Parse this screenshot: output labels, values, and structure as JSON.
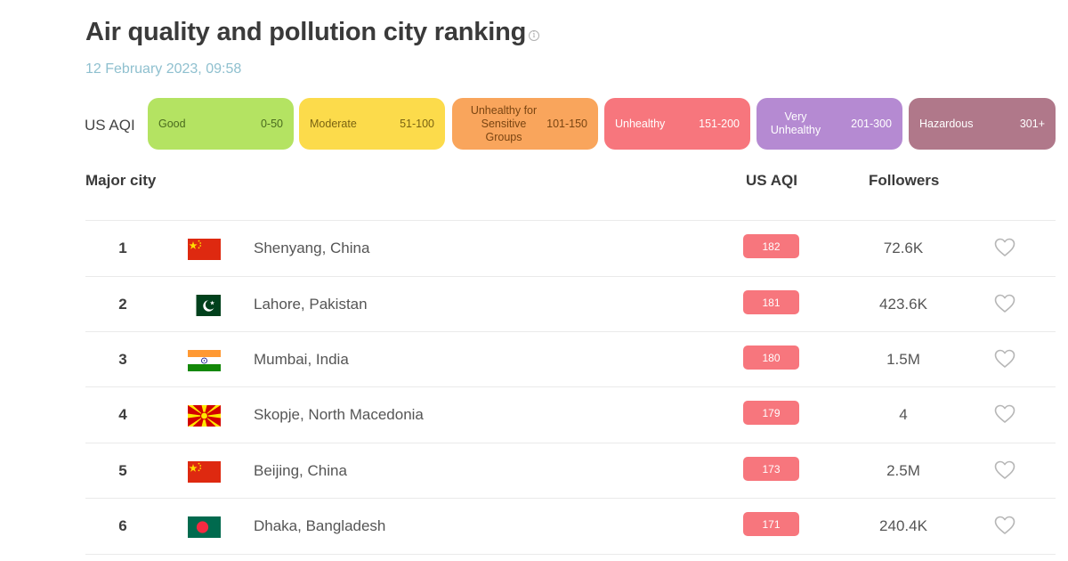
{
  "header": {
    "title": "Air quality and pollution city ranking",
    "timestamp": "12 February 2023, 09:58",
    "info_icon": "info-circle-icon"
  },
  "legend": {
    "label": "US AQI",
    "levels": [
      {
        "name": "Good",
        "range": "0-50",
        "color": "#b4e362",
        "text_color": "#4a6b1e"
      },
      {
        "name": "Moderate",
        "range": "51-100",
        "color": "#fcdb4b",
        "text_color": "#7a6312"
      },
      {
        "name": "Unhealthy for Sensitive Groups",
        "range": "101-150",
        "color": "#f9a55c",
        "text_color": "#7a4512"
      },
      {
        "name": "Unhealthy",
        "range": "151-200",
        "color": "#f7767d",
        "text_color": "#ffffff"
      },
      {
        "name": "Very Unhealthy",
        "range": "201-300",
        "color": "#b58ad2",
        "text_color": "#ffffff"
      },
      {
        "name": "Hazardous",
        "range": "301+",
        "color": "#b0788a",
        "text_color": "#ffffff"
      }
    ]
  },
  "table": {
    "columns": {
      "city": "Major city",
      "aqi": "US AQI",
      "followers": "Followers"
    },
    "rows": [
      {
        "rank": "1",
        "flag": "china-flag",
        "city": "Shenyang, China",
        "aqi": "182",
        "followers": "72.6K",
        "follow_icon": "heart-outline-icon"
      },
      {
        "rank": "2",
        "flag": "pakistan-flag",
        "city": "Lahore, Pakistan",
        "aqi": "181",
        "followers": "423.6K",
        "follow_icon": "heart-outline-icon"
      },
      {
        "rank": "3",
        "flag": "india-flag",
        "city": "Mumbai, India",
        "aqi": "180",
        "followers": "1.5M",
        "follow_icon": "heart-outline-icon"
      },
      {
        "rank": "4",
        "flag": "north-macedonia-flag",
        "city": "Skopje, North Macedonia",
        "aqi": "179",
        "followers": "4",
        "follow_icon": "heart-outline-icon"
      },
      {
        "rank": "5",
        "flag": "china-flag",
        "city": "Beijing, China",
        "aqi": "173",
        "followers": "2.5M",
        "follow_icon": "heart-outline-icon"
      },
      {
        "rank": "6",
        "flag": "bangladesh-flag",
        "city": "Dhaka, Bangladesh",
        "aqi": "171",
        "followers": "240.4K",
        "follow_icon": "heart-outline-icon"
      }
    ]
  }
}
